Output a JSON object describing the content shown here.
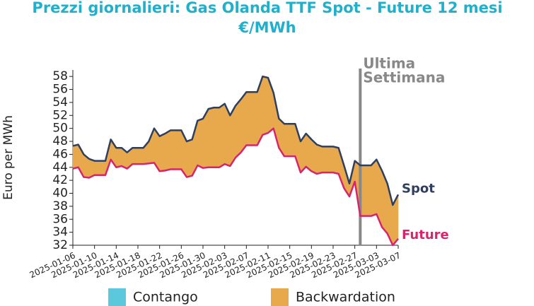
{
  "chart_data": {
    "type": "line",
    "title": "Prezzi giornalieri: Gas Olanda TTF Spot - Future 12 mesi",
    "subtitle": "€/MWh",
    "ylabel": "Euro per MWh",
    "x": [
      "2025-01-06",
      "2025-01-07",
      "2025-01-08",
      "2025-01-09",
      "2025-01-10",
      "2025-01-11",
      "2025-01-12",
      "2025-01-13",
      "2025-01-14",
      "2025-01-15",
      "2025-01-16",
      "2025-01-17",
      "2025-01-18",
      "2025-01-19",
      "2025-01-20",
      "2025-01-21",
      "2025-01-22",
      "2025-01-23",
      "2025-01-24",
      "2025-01-25",
      "2025-01-26",
      "2025-01-27",
      "2025-01-28",
      "2025-01-29",
      "2025-01-30",
      "2025-01-31",
      "2025-02-01",
      "2025-02-02",
      "2025-02-03",
      "2025-02-04",
      "2025-02-05",
      "2025-02-06",
      "2025-02-07",
      "2025-02-08",
      "2025-02-09",
      "2025-02-10",
      "2025-02-11",
      "2025-02-12",
      "2025-02-13",
      "2025-02-14",
      "2025-02-15",
      "2025-02-16",
      "2025-02-17",
      "2025-02-18",
      "2025-02-19",
      "2025-02-20",
      "2025-02-21",
      "2025-02-22",
      "2025-02-23",
      "2025-02-24",
      "2025-02-25",
      "2025-02-26",
      "2025-02-27",
      "2025-02-28",
      "2025-03-01",
      "2025-03-02",
      "2025-03-03",
      "2025-03-04",
      "2025-03-05",
      "2025-03-06",
      "2025-03-07"
    ],
    "series": [
      {
        "name": "Spot",
        "color": "#2e3f5f",
        "values": [
          47.3,
          47.5,
          46.0,
          45.3,
          45.0,
          45.0,
          45.0,
          48.3,
          47.0,
          47.0,
          46.3,
          47.0,
          47.0,
          47.0,
          48.0,
          50.0,
          48.8,
          49.2,
          49.7,
          49.7,
          49.7,
          48.0,
          48.3,
          51.2,
          51.5,
          53.0,
          53.2,
          53.2,
          53.8,
          52.0,
          53.5,
          54.5,
          55.6,
          55.6,
          55.6,
          58.0,
          57.8,
          55.5,
          51.5,
          50.7,
          50.7,
          50.7,
          48.0,
          49.2,
          48.3,
          47.5,
          47.2,
          47.2,
          47.2,
          47.0,
          44.3,
          41.5,
          45.0,
          44.3,
          44.3,
          44.3,
          45.2,
          43.5,
          41.5,
          38.2,
          39.8
        ]
      },
      {
        "name": "Future",
        "color": "#d6246e",
        "values": [
          43.8,
          44.0,
          42.5,
          42.4,
          42.8,
          42.8,
          42.8,
          45.2,
          44.0,
          44.2,
          43.8,
          44.5,
          44.5,
          44.5,
          44.6,
          44.7,
          43.4,
          43.5,
          43.7,
          43.7,
          43.7,
          42.5,
          42.7,
          44.3,
          43.9,
          44.0,
          44.0,
          44.0,
          44.5,
          44.2,
          45.5,
          46.3,
          47.4,
          47.4,
          47.4,
          49.0,
          49.3,
          50.0,
          47.0,
          45.7,
          45.7,
          45.7,
          43.2,
          44.1,
          43.4,
          43.0,
          43.2,
          43.2,
          43.2,
          43.0,
          40.8,
          39.5,
          41.8,
          36.5,
          36.5,
          36.5,
          36.8,
          34.8,
          33.8,
          32.0,
          33.0
        ]
      }
    ],
    "fill_legend": [
      {
        "name": "Contango",
        "color": "#5bc8dc"
      },
      {
        "name": "Backwardation",
        "color": "#e8a84c"
      }
    ],
    "annotation": {
      "x": "2025-02-28",
      "text": [
        "Ultima",
        "Settimana"
      ],
      "color": "#888888"
    },
    "xlim": [
      "2025-01-06",
      "2025-03-07"
    ],
    "xticks": [
      "2025-01-06",
      "2025-01-10",
      "2025-01-14",
      "2025-01-18",
      "2025-01-22",
      "2025-01-26",
      "2025-01-30",
      "2025-02-03",
      "2025-02-07",
      "2025-02-11",
      "2025-02-15",
      "2025-02-19",
      "2025-02-23",
      "2025-02-27",
      "2025-03-03",
      "2025-03-07"
    ],
    "ylim": [
      32,
      59
    ],
    "yticks": [
      32,
      34,
      36,
      38,
      40,
      42,
      44,
      46,
      48,
      50,
      52,
      54,
      56,
      58
    ]
  }
}
